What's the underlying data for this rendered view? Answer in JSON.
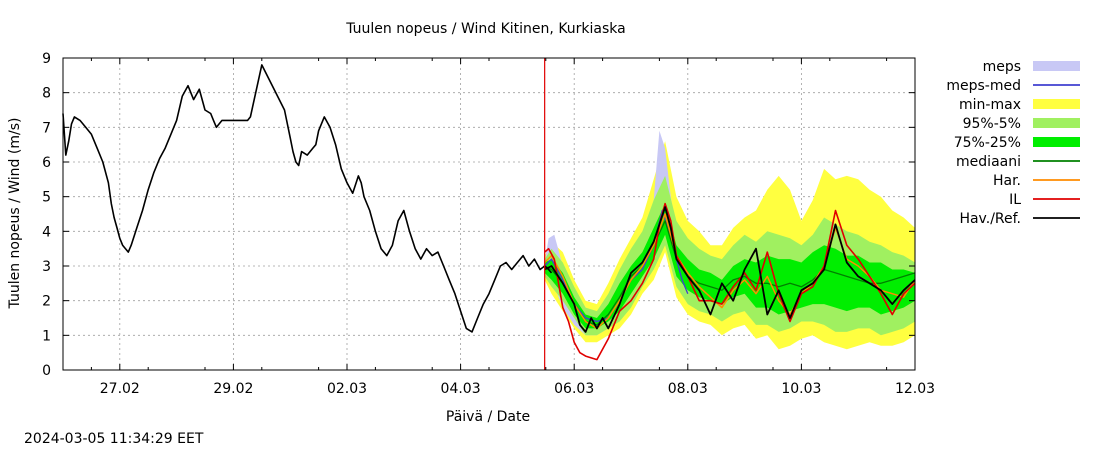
{
  "chart_data": {
    "type": "line",
    "title": "Tuulen nopeus / Wind  Kitinen, Kurkiaska",
    "xlabel": "Päivä / Date",
    "ylabel": "Tuulen nopeus / Wind (m/s)",
    "timestamp": "2024-03-05 11:34:29 EET",
    "x_unit": "days since 2024-02-26 00:00",
    "xlim": [
      0,
      15
    ],
    "ylim": [
      0,
      9
    ],
    "yticks": [
      0,
      1,
      2,
      3,
      4,
      5,
      6,
      7,
      8,
      9
    ],
    "xticks": [
      {
        "x": 1,
        "label": "27.02"
      },
      {
        "x": 3,
        "label": "29.02"
      },
      {
        "x": 5,
        "label": "02.03"
      },
      {
        "x": 7,
        "label": "04.03"
      },
      {
        "x": 9,
        "label": "06.03"
      },
      {
        "x": 11,
        "label": "08.03"
      },
      {
        "x": 13,
        "label": "10.03"
      },
      {
        "x": 15,
        "label": "12.03"
      }
    ],
    "now_x": 8.48,
    "colors": {
      "meps": "#c8c8f5",
      "meps_med": "#4040d0",
      "minmax": "#ffff40",
      "p95_5": "#a0f060",
      "p75_25": "#00ee00",
      "median": "#008000",
      "har": "#ff8c00",
      "il": "#e00000",
      "obs": "#000000",
      "now": "#e00000",
      "grid": "#a0a0a0"
    },
    "legend": [
      {
        "key": "meps",
        "label": "meps",
        "kind": "band"
      },
      {
        "key": "meps_med",
        "label": "meps-med",
        "kind": "line"
      },
      {
        "key": "minmax",
        "label": "min-max",
        "kind": "band"
      },
      {
        "key": "p95_5",
        "label": "95%-5%",
        "kind": "band"
      },
      {
        "key": "p75_25",
        "label": "75%-25%",
        "kind": "band"
      },
      {
        "key": "median",
        "label": "mediaani",
        "kind": "line"
      },
      {
        "key": "har",
        "label": "Har.",
        "kind": "line"
      },
      {
        "key": "il",
        "label": "IL",
        "kind": "line"
      },
      {
        "key": "obs",
        "label": "Hav./Ref.",
        "kind": "line"
      }
    ],
    "series": {
      "obs": {
        "x": [
          0,
          0.05,
          0.1,
          0.15,
          0.2,
          0.3,
          0.4,
          0.5,
          0.6,
          0.7,
          0.8,
          0.85,
          0.9,
          0.95,
          1.0,
          1.05,
          1.1,
          1.15,
          1.2,
          1.3,
          1.4,
          1.5,
          1.6,
          1.7,
          1.8,
          1.9,
          2.0,
          2.1,
          2.2,
          2.3,
          2.4,
          2.5,
          2.6,
          2.65,
          2.7,
          2.8,
          2.9,
          3.0,
          3.1,
          3.2,
          3.25,
          3.3,
          3.5,
          3.9,
          4.0,
          4.05,
          4.1,
          4.15,
          4.2,
          4.3,
          4.4,
          4.45,
          4.5,
          4.6,
          4.7,
          4.8,
          4.9,
          5.0,
          5.1,
          5.2,
          5.25,
          5.3,
          5.4,
          5.5,
          5.6,
          5.7,
          5.8,
          5.9,
          6.0,
          6.1,
          6.2,
          6.3,
          6.4,
          6.5,
          6.6,
          6.7,
          6.8,
          6.9,
          7.0,
          7.1,
          7.2,
          7.3,
          7.4,
          7.5,
          7.6,
          7.7,
          7.8,
          7.9,
          8.0,
          8.1,
          8.2,
          8.3,
          8.4,
          8.48,
          8.55,
          8.6
        ],
        "y": [
          7.4,
          6.2,
          6.6,
          7.1,
          7.3,
          7.2,
          7.0,
          6.8,
          6.4,
          6.0,
          5.4,
          4.8,
          4.4,
          4.1,
          3.8,
          3.6,
          3.5,
          3.4,
          3.6,
          4.1,
          4.6,
          5.2,
          5.7,
          6.1,
          6.4,
          6.8,
          7.2,
          7.9,
          8.2,
          7.8,
          8.1,
          7.5,
          7.4,
          7.2,
          7.0,
          7.2,
          7.2,
          7.2,
          7.2,
          7.2,
          7.2,
          7.3,
          8.8,
          7.5,
          6.7,
          6.3,
          6.0,
          5.9,
          6.3,
          6.2,
          6.4,
          6.5,
          6.9,
          7.3,
          7.0,
          6.5,
          5.8,
          5.4,
          5.1,
          5.6,
          5.4,
          5.0,
          4.6,
          4.0,
          3.5,
          3.3,
          3.6,
          4.3,
          4.6,
          4.0,
          3.5,
          3.2,
          3.5,
          3.3,
          3.4,
          3.0,
          2.6,
          2.2,
          1.7,
          1.2,
          1.1,
          1.5,
          1.9,
          2.2,
          2.6,
          3.0,
          3.1,
          2.9,
          3.1,
          3.3,
          3.0,
          3.2,
          2.9,
          3.0,
          2.9,
          2.8
        ]
      },
      "minmax": {
        "x": [
          8.48,
          8.6,
          8.8,
          9.0,
          9.2,
          9.4,
          9.6,
          9.8,
          10.0,
          10.2,
          10.4,
          10.6,
          10.8,
          11.0,
          11.2,
          11.4,
          11.6,
          11.8,
          12.0,
          12.2,
          12.4,
          12.6,
          12.8,
          13.0,
          13.2,
          13.4,
          13.6,
          13.8,
          14.0,
          14.2,
          14.4,
          14.6,
          14.8,
          15.0
        ],
        "low": [
          2.6,
          2.2,
          1.7,
          1.2,
          0.8,
          0.8,
          1.0,
          1.2,
          1.6,
          2.2,
          2.6,
          3.4,
          2.1,
          1.6,
          1.4,
          1.3,
          1.0,
          1.2,
          1.3,
          0.9,
          1.0,
          0.6,
          0.7,
          0.9,
          1.0,
          0.8,
          0.7,
          0.6,
          0.7,
          0.8,
          0.7,
          0.7,
          0.8,
          1.0
        ],
        "high": [
          3.3,
          3.7,
          3.4,
          2.6,
          2.0,
          1.9,
          2.5,
          3.2,
          3.8,
          4.4,
          5.5,
          6.6,
          5.0,
          4.3,
          4.0,
          3.6,
          3.6,
          4.1,
          4.4,
          4.6,
          5.2,
          5.6,
          5.2,
          4.3,
          4.9,
          5.8,
          5.5,
          5.6,
          5.5,
          5.2,
          5.0,
          4.6,
          4.4,
          4.1
        ]
      },
      "meps": {
        "x": [
          8.48,
          8.55,
          8.65,
          8.8,
          9.0,
          9.2,
          9.4,
          9.6,
          9.8,
          10.0,
          10.2,
          10.4,
          10.5,
          10.6,
          10.7,
          10.8,
          10.9,
          11.0
        ],
        "low": [
          2.8,
          2.9,
          2.4,
          1.8,
          1.3,
          1.0,
          1.0,
          1.2,
          1.6,
          2.1,
          2.6,
          3.3,
          3.9,
          4.2,
          3.8,
          3.2,
          2.4,
          2.1
        ],
        "high": [
          3.1,
          3.8,
          3.9,
          3.0,
          2.3,
          1.8,
          1.6,
          1.8,
          2.5,
          3.1,
          3.7,
          4.9,
          6.9,
          6.4,
          5.0,
          4.0,
          3.2,
          2.9
        ]
      },
      "p95_5": {
        "x": [
          8.48,
          8.6,
          8.8,
          9.0,
          9.2,
          9.4,
          9.6,
          9.8,
          10.0,
          10.2,
          10.4,
          10.6,
          10.8,
          11.0,
          11.2,
          11.4,
          11.6,
          11.8,
          12.0,
          12.2,
          12.4,
          12.6,
          12.8,
          13.0,
          13.2,
          13.4,
          13.6,
          13.8,
          14.0,
          14.2,
          14.4,
          14.6,
          14.8,
          15.0
        ],
        "low": [
          2.7,
          2.4,
          2.0,
          1.5,
          1.0,
          1.0,
          1.2,
          1.4,
          1.8,
          2.4,
          2.9,
          3.6,
          2.4,
          1.9,
          1.7,
          1.6,
          1.4,
          1.6,
          1.7,
          1.3,
          1.3,
          1.1,
          1.2,
          1.4,
          1.4,
          1.3,
          1.1,
          1.1,
          1.2,
          1.2,
          1.0,
          1.1,
          1.2,
          1.4
        ],
        "high": [
          3.2,
          3.5,
          3.1,
          2.4,
          1.8,
          1.7,
          2.2,
          2.9,
          3.5,
          4.0,
          4.9,
          5.6,
          4.3,
          3.8,
          3.5,
          3.3,
          3.2,
          3.6,
          3.9,
          3.7,
          4.0,
          3.9,
          3.8,
          3.6,
          3.9,
          4.4,
          4.2,
          4.0,
          3.9,
          3.7,
          3.6,
          3.4,
          3.3,
          3.1
        ]
      },
      "p75_25": {
        "x": [
          8.48,
          8.6,
          8.8,
          9.0,
          9.2,
          9.4,
          9.6,
          9.8,
          10.0,
          10.2,
          10.4,
          10.6,
          10.8,
          11.0,
          11.2,
          11.4,
          11.6,
          11.8,
          12.0,
          12.2,
          12.4,
          12.6,
          12.8,
          13.0,
          13.2,
          13.4,
          13.6,
          13.8,
          14.0,
          14.2,
          14.4,
          14.6,
          14.8,
          15.0
        ],
        "low": [
          2.8,
          2.6,
          2.2,
          1.6,
          1.2,
          1.2,
          1.4,
          1.7,
          2.2,
          2.7,
          3.2,
          3.9,
          2.7,
          2.3,
          2.1,
          2.0,
          1.9,
          2.1,
          2.2,
          1.8,
          1.8,
          1.6,
          1.7,
          1.8,
          1.9,
          1.9,
          1.8,
          1.7,
          1.8,
          1.8,
          1.6,
          1.7,
          1.8,
          2.0
        ],
        "high": [
          3.1,
          3.2,
          2.8,
          2.1,
          1.6,
          1.5,
          1.9,
          2.5,
          3.0,
          3.4,
          4.1,
          4.8,
          3.6,
          3.2,
          2.9,
          2.8,
          2.6,
          3.0,
          3.2,
          3.1,
          3.3,
          3.2,
          3.2,
          3.1,
          3.4,
          3.6,
          3.5,
          3.3,
          3.3,
          3.1,
          3.1,
          2.9,
          2.9,
          2.8
        ]
      },
      "meps_med": {
        "x": [
          8.48,
          8.6,
          8.8,
          9.0,
          9.2,
          9.4,
          9.6,
          9.8,
          10.0,
          10.2,
          10.4,
          10.55,
          10.7,
          10.8,
          10.9,
          11.0
        ],
        "y": [
          3.0,
          3.2,
          2.6,
          1.9,
          1.5,
          1.4,
          1.5,
          2.0,
          2.6,
          2.9,
          3.6,
          4.6,
          3.9,
          3.2,
          2.6,
          2.2
        ]
      },
      "median": {
        "x": [
          8.48,
          8.6,
          8.8,
          9.0,
          9.2,
          9.4,
          9.6,
          9.8,
          10.0,
          10.2,
          10.4,
          10.6,
          10.8,
          11.0,
          11.2,
          11.4,
          11.6,
          11.8,
          12.0,
          12.2,
          12.4,
          12.6,
          12.8,
          13.0,
          13.2,
          13.4,
          13.6,
          13.8,
          14.0,
          14.2,
          14.4,
          14.6,
          14.8,
          15.0
        ],
        "y": [
          3.0,
          2.9,
          2.5,
          1.9,
          1.4,
          1.3,
          1.6,
          2.1,
          2.7,
          3.0,
          3.6,
          4.3,
          3.2,
          2.7,
          2.5,
          2.4,
          2.3,
          2.6,
          2.7,
          2.5,
          2.5,
          2.4,
          2.5,
          2.4,
          2.6,
          2.9,
          2.8,
          2.7,
          2.6,
          2.5,
          2.5,
          2.6,
          2.7,
          2.8
        ]
      },
      "har": {
        "x": [
          8.48,
          8.6,
          8.8,
          9.0,
          9.2,
          9.4,
          9.6,
          9.8,
          10.0,
          10.2,
          10.4,
          10.6,
          10.8,
          11.0,
          11.2,
          11.4,
          11.6,
          11.8,
          12.0,
          12.2,
          12.4,
          12.6,
          12.8,
          13.0,
          13.2,
          13.4,
          13.6,
          13.8,
          14.0,
          14.2,
          14.4,
          14.6,
          14.8,
          15.0
        ],
        "y": [
          3.1,
          3.3,
          2.7,
          1.9,
          1.4,
          1.2,
          1.5,
          2.0,
          2.6,
          3.0,
          3.6,
          4.5,
          3.3,
          2.8,
          2.4,
          2.1,
          1.8,
          2.3,
          2.6,
          2.2,
          2.7,
          2.0,
          1.6,
          2.2,
          2.5,
          3.0,
          4.1,
          3.2,
          3.0,
          2.7,
          2.3,
          2.2,
          2.1,
          2.6
        ]
      },
      "il": {
        "x": [
          8.48,
          8.55,
          8.65,
          8.8,
          8.9,
          9.0,
          9.1,
          9.2,
          9.4,
          9.6,
          9.8,
          10.0,
          10.2,
          10.4,
          10.5,
          10.6,
          10.7,
          10.8,
          11.0,
          11.2,
          11.4,
          11.6,
          11.8,
          12.0,
          12.2,
          12.4,
          12.6,
          12.8,
          13.0,
          13.2,
          13.4,
          13.6,
          13.8,
          14.0,
          14.2,
          14.4,
          14.6,
          14.8,
          15.0
        ],
        "y": [
          3.4,
          3.5,
          3.2,
          1.8,
          1.4,
          0.8,
          0.5,
          0.4,
          0.3,
          0.9,
          1.7,
          2.0,
          2.5,
          3.2,
          4.2,
          4.8,
          4.3,
          3.3,
          2.7,
          2.0,
          2.0,
          1.9,
          2.4,
          2.8,
          2.3,
          3.4,
          2.2,
          1.4,
          2.2,
          2.4,
          3.0,
          4.6,
          3.6,
          3.2,
          2.7,
          2.2,
          1.6,
          2.2,
          2.5
        ]
      },
      "obs_fc": {
        "x": [
          8.48,
          8.6,
          8.8,
          9.0,
          9.1,
          9.2,
          9.3,
          9.4,
          9.5,
          9.6,
          9.8,
          10.0,
          10.2,
          10.4,
          10.5,
          10.6,
          10.7,
          10.8,
          11.0,
          11.2,
          11.4,
          11.6,
          11.8,
          12.0,
          12.2,
          12.4,
          12.6,
          12.8,
          13.0,
          13.2,
          13.4,
          13.6,
          13.8,
          14.0,
          14.2,
          14.4,
          14.6,
          14.8,
          15.0
        ],
        "y": [
          2.9,
          3.0,
          2.5,
          1.9,
          1.3,
          1.1,
          1.5,
          1.2,
          1.5,
          1.2,
          1.9,
          2.8,
          3.1,
          3.7,
          4.2,
          4.7,
          4.1,
          3.2,
          2.7,
          2.3,
          1.6,
          2.5,
          2.0,
          2.9,
          3.5,
          1.6,
          2.3,
          1.5,
          2.3,
          2.5,
          2.9,
          4.2,
          3.1,
          2.7,
          2.5,
          2.3,
          1.9,
          2.3,
          2.6
        ]
      }
    }
  }
}
